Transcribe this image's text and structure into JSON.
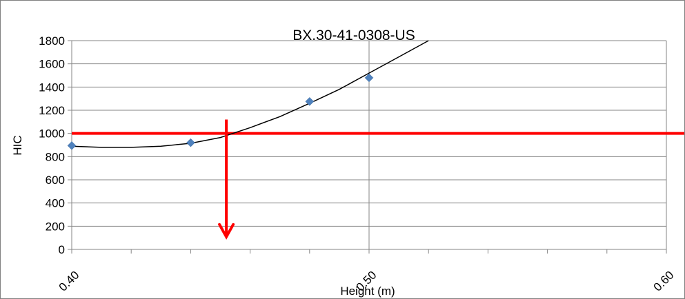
{
  "chart_data": {
    "type": "scatter",
    "title": "BX.30-41-0308-US",
    "xlabel": "Height (m)",
    "ylabel": "HIC",
    "xlim": [
      0.4,
      0.6
    ],
    "ylim": [
      0,
      1800
    ],
    "x_ticks": [
      "0.40",
      "0.50",
      "0.60"
    ],
    "y_ticks": [
      "0",
      "200",
      "400",
      "600",
      "800",
      "1000",
      "1200",
      "1400",
      "1600",
      "1800"
    ],
    "grid": "major",
    "series": [
      {
        "points": [
          {
            "x": 0.4,
            "y": 895
          },
          {
            "x": 0.44,
            "y": 920
          },
          {
            "x": 0.48,
            "y": 1275
          },
          {
            "x": 0.5,
            "y": 1480
          }
        ],
        "color": "#4F81BD",
        "marker": "diamond"
      }
    ],
    "trendline": {
      "type": "polynomial",
      "color": "#000000",
      "points": [
        {
          "x": 0.4,
          "y": 890
        },
        {
          "x": 0.41,
          "y": 880
        },
        {
          "x": 0.42,
          "y": 880
        },
        {
          "x": 0.43,
          "y": 890
        },
        {
          "x": 0.44,
          "y": 915
        },
        {
          "x": 0.45,
          "y": 965
        },
        {
          "x": 0.46,
          "y": 1050
        },
        {
          "x": 0.47,
          "y": 1145
        },
        {
          "x": 0.48,
          "y": 1260
        },
        {
          "x": 0.49,
          "y": 1380
        },
        {
          "x": 0.5,
          "y": 1520
        },
        {
          "x": 0.51,
          "y": 1660
        },
        {
          "x": 0.52,
          "y": 1800
        }
      ]
    },
    "threshold_line": {
      "y": 1000,
      "color": "#FF0000"
    },
    "arrow": {
      "x": 0.452,
      "y_from": 1120,
      "y_to": 120,
      "color": "#FF0000"
    }
  }
}
